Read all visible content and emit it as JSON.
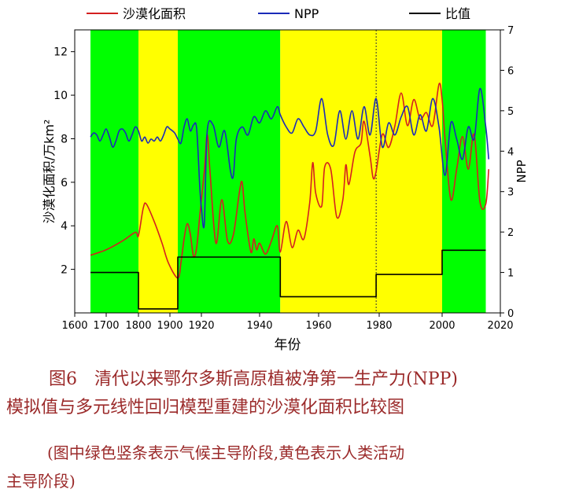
{
  "chart_data": {
    "type": "line",
    "xlabel": "年份",
    "ylabel_left": "沙漠化面积/万km²",
    "ylabel_right": "NPP",
    "xlim": [
      1600,
      2020
    ],
    "ylim_left": [
      0,
      13
    ],
    "ylim_right": [
      0,
      7
    ],
    "x_ticks": [
      1600,
      1700,
      1800,
      1900,
      1920,
      1940,
      1960,
      1980,
      2000,
      2020
    ],
    "y_left_ticks": [
      2,
      4,
      6,
      8,
      10,
      12
    ],
    "y_right_ticks": [
      0,
      1,
      2,
      3,
      4,
      5,
      6,
      7
    ],
    "legend": {
      "position": "top",
      "entries": [
        "沙漠化面积",
        "NPP",
        "比值"
      ]
    },
    "bands": [
      {
        "start": 1650,
        "end": 1800,
        "color": "#00ff00"
      },
      {
        "start": 1800,
        "end": 1905,
        "color": "#ffff00"
      },
      {
        "start": 1905,
        "end": 1947,
        "color": "#00ff00"
      },
      {
        "start": 1947,
        "end": 1979,
        "color": "#ffff00"
      },
      {
        "start": 1979,
        "end": 2000,
        "color": "#ffff00"
      },
      {
        "start": 2000,
        "end": 2015,
        "color": "#00ff00"
      }
    ],
    "vlines": [
      1979
    ],
    "series": [
      {
        "name": "沙漠化面积",
        "axis": "left",
        "color": "#d42020",
        "points": [
          [
            1650,
            2.65
          ],
          [
            1700,
            2.9
          ],
          [
            1750,
            3.3
          ],
          [
            1790,
            3.7
          ],
          [
            1800,
            3.55
          ],
          [
            1815,
            4.8
          ],
          [
            1825,
            5.0
          ],
          [
            1850,
            4.2
          ],
          [
            1875,
            3.2
          ],
          [
            1895,
            2.3
          ],
          [
            1905,
            1.6
          ],
          [
            1907,
            2.3
          ],
          [
            1909,
            3.4
          ],
          [
            1911,
            4.1
          ],
          [
            1913,
            3.6
          ],
          [
            1915,
            2.6
          ],
          [
            1917,
            3.0
          ],
          [
            1919,
            4.5
          ],
          [
            1921,
            6.5
          ],
          [
            1922,
            8.2
          ],
          [
            1923,
            6.4
          ],
          [
            1925,
            3.2
          ],
          [
            1927,
            5.2
          ],
          [
            1929,
            3.3
          ],
          [
            1931,
            3.6
          ],
          [
            1933,
            5.5
          ],
          [
            1934,
            6.0
          ],
          [
            1935,
            4.6
          ],
          [
            1937,
            2.8
          ],
          [
            1938,
            3.4
          ],
          [
            1939,
            2.9
          ],
          [
            1940,
            3.2
          ],
          [
            1942,
            2.7
          ],
          [
            1944,
            3.3
          ],
          [
            1946,
            4.0
          ],
          [
            1947,
            2.8
          ],
          [
            1949,
            4.2
          ],
          [
            1951,
            3.0
          ],
          [
            1953,
            3.8
          ],
          [
            1955,
            3.4
          ],
          [
            1957,
            5.1
          ],
          [
            1958,
            6.9
          ],
          [
            1959,
            5.5
          ],
          [
            1961,
            4.9
          ],
          [
            1962,
            6.7
          ],
          [
            1964,
            6.6
          ],
          [
            1966,
            4.4
          ],
          [
            1968,
            5.2
          ],
          [
            1969,
            6.8
          ],
          [
            1970,
            5.9
          ],
          [
            1972,
            7.4
          ],
          [
            1974,
            7.8
          ],
          [
            1975,
            8.8
          ],
          [
            1977,
            7.2
          ],
          [
            1978,
            6.2
          ],
          [
            1979,
            6.5
          ],
          [
            1981,
            8.2
          ],
          [
            1983,
            7.6
          ],
          [
            1985,
            8.6
          ],
          [
            1987,
            10.1
          ],
          [
            1989,
            8.6
          ],
          [
            1991,
            9.8
          ],
          [
            1993,
            8.9
          ],
          [
            1995,
            9.2
          ],
          [
            1997,
            8.6
          ],
          [
            1999,
            10.5
          ],
          [
            2000,
            9.8
          ],
          [
            2001,
            8.0
          ],
          [
            2003,
            5.2
          ],
          [
            2005,
            6.6
          ],
          [
            2007,
            8.1
          ],
          [
            2009,
            6.6
          ],
          [
            2011,
            8.2
          ],
          [
            2013,
            5.1
          ],
          [
            2015,
            5.0
          ],
          [
            2016,
            6.6
          ]
        ]
      },
      {
        "name": "NPP",
        "axis": "right",
        "color": "#1a2bb8",
        "points": [
          [
            1650,
            4.35
          ],
          [
            1660,
            4.45
          ],
          [
            1670,
            4.4
          ],
          [
            1680,
            4.25
          ],
          [
            1690,
            4.4
          ],
          [
            1700,
            4.55
          ],
          [
            1710,
            4.35
          ],
          [
            1720,
            4.1
          ],
          [
            1730,
            4.25
          ],
          [
            1740,
            4.5
          ],
          [
            1750,
            4.55
          ],
          [
            1760,
            4.45
          ],
          [
            1770,
            4.25
          ],
          [
            1780,
            4.4
          ],
          [
            1790,
            4.6
          ],
          [
            1800,
            4.5
          ],
          [
            1810,
            4.25
          ],
          [
            1820,
            4.35
          ],
          [
            1830,
            4.2
          ],
          [
            1840,
            4.3
          ],
          [
            1850,
            4.25
          ],
          [
            1860,
            4.35
          ],
          [
            1870,
            4.25
          ],
          [
            1880,
            4.4
          ],
          [
            1890,
            4.6
          ],
          [
            1900,
            4.55
          ],
          [
            1903,
            4.45
          ],
          [
            1905,
            4.3
          ],
          [
            1907,
            4.2
          ],
          [
            1909,
            4.6
          ],
          [
            1911,
            4.8
          ],
          [
            1913,
            4.5
          ],
          [
            1915,
            4.65
          ],
          [
            1917,
            4.55
          ],
          [
            1919,
            3.1
          ],
          [
            1920,
            2.6
          ],
          [
            1921,
            2.2
          ],
          [
            1922,
            4.5
          ],
          [
            1924,
            4.65
          ],
          [
            1926,
            4.1
          ],
          [
            1928,
            4.5
          ],
          [
            1930,
            3.5
          ],
          [
            1931,
            3.4
          ],
          [
            1932,
            4.3
          ],
          [
            1934,
            4.6
          ],
          [
            1936,
            4.4
          ],
          [
            1938,
            4.85
          ],
          [
            1940,
            4.7
          ],
          [
            1942,
            5.0
          ],
          [
            1944,
            4.8
          ],
          [
            1946,
            5.1
          ],
          [
            1947,
            4.9
          ],
          [
            1949,
            4.6
          ],
          [
            1951,
            4.45
          ],
          [
            1953,
            4.8
          ],
          [
            1955,
            4.6
          ],
          [
            1957,
            4.4
          ],
          [
            1959,
            4.5
          ],
          [
            1961,
            5.3
          ],
          [
            1963,
            4.4
          ],
          [
            1965,
            4.15
          ],
          [
            1967,
            5.0
          ],
          [
            1969,
            4.3
          ],
          [
            1971,
            5.0
          ],
          [
            1973,
            4.3
          ],
          [
            1975,
            5.1
          ],
          [
            1977,
            4.4
          ],
          [
            1979,
            5.3
          ],
          [
            1981,
            4.1
          ],
          [
            1983,
            4.7
          ],
          [
            1985,
            4.4
          ],
          [
            1987,
            4.85
          ],
          [
            1989,
            5.1
          ],
          [
            1991,
            4.4
          ],
          [
            1993,
            4.9
          ],
          [
            1995,
            4.5
          ],
          [
            1997,
            5.3
          ],
          [
            1999,
            4.6
          ],
          [
            2001,
            3.4
          ],
          [
            2003,
            4.7
          ],
          [
            2005,
            4.3
          ],
          [
            2007,
            3.8
          ],
          [
            2009,
            4.6
          ],
          [
            2011,
            4.3
          ],
          [
            2013,
            5.55
          ],
          [
            2015,
            4.6
          ],
          [
            2016,
            3.8
          ]
        ]
      },
      {
        "name": "比值",
        "axis": "right",
        "color": "#000000",
        "steps": [
          [
            1650,
            1800,
            1.0
          ],
          [
            1800,
            1905,
            0.1
          ],
          [
            1905,
            1947,
            1.38
          ],
          [
            1947,
            1979,
            0.4
          ],
          [
            1979,
            2000,
            0.95
          ],
          [
            2000,
            2015,
            1.55
          ]
        ]
      }
    ]
  },
  "caption": {
    "line1": "图6　清代以来鄂尔多斯高原植被净第一生产力(NPP)",
    "line2": "模拟值与多元线性回归模型重建的沙漠化面积比较图",
    "line3": "(图中绿色竖条表示气候主导阶段,黄色表示人类活动",
    "line4": "主导阶段)"
  }
}
